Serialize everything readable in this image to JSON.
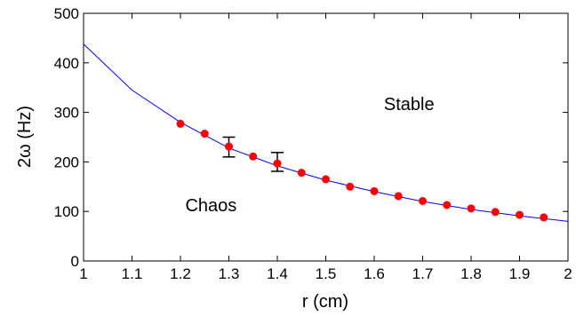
{
  "chart_data": {
    "type": "scatter",
    "xlabel": "r (cm)",
    "ylabel": "2ω (Hz)",
    "xlim": [
      1,
      2
    ],
    "ylim": [
      0,
      500
    ],
    "xticks": [
      1,
      1.1,
      1.2,
      1.3,
      1.4,
      1.5,
      1.6,
      1.7,
      1.8,
      1.9,
      2
    ],
    "yticks": [
      0,
      100,
      200,
      300,
      400,
      500
    ],
    "xtick_labels": [
      "1",
      "1.1",
      "1.2",
      "1.3",
      "1.4",
      "1.5",
      "1.6",
      "1.7",
      "1.8",
      "1.9",
      "2"
    ],
    "ytick_labels": [
      "0",
      "100",
      "200",
      "300",
      "400",
      "500"
    ],
    "grid": false,
    "annotations": [
      {
        "text": "Stable",
        "x": 1.62,
        "y": 305
      },
      {
        "text": "Chaos",
        "x": 1.21,
        "y": 100
      }
    ],
    "series": [
      {
        "kind": "line",
        "color": "#0000ff",
        "x": [
          1.0,
          1.1,
          1.2,
          1.3,
          1.4,
          1.5,
          1.6,
          1.7,
          1.8,
          1.9,
          2.0
        ],
        "y": [
          438,
          345,
          280,
          228,
          192,
          163,
          140,
          120,
          104,
          91,
          80
        ]
      },
      {
        "kind": "scatter",
        "color": "#ff0000",
        "x": [
          1.2,
          1.25,
          1.3,
          1.35,
          1.4,
          1.45,
          1.5,
          1.55,
          1.6,
          1.65,
          1.7,
          1.75,
          1.8,
          1.85,
          1.9,
          1.95
        ],
        "y": [
          277,
          257,
          231,
          211,
          197,
          178,
          165,
          150,
          141,
          131,
          121,
          113,
          106,
          99,
          93,
          88
        ]
      }
    ],
    "error_bars": [
      {
        "x": 1.3,
        "y": 231,
        "low": 210,
        "high": 250
      },
      {
        "x": 1.4,
        "y": 197,
        "low": 181,
        "high": 219
      }
    ]
  }
}
